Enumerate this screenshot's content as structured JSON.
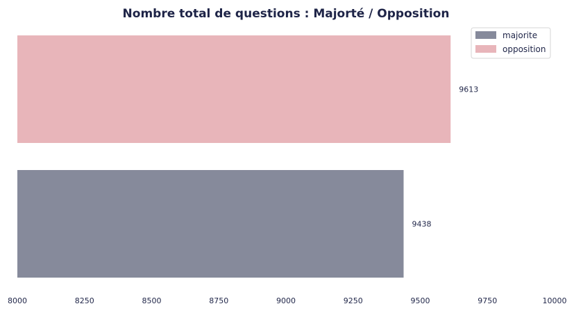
{
  "chart_data": {
    "type": "bar",
    "orientation": "horizontal",
    "title": "Nombre total de questions : Majorté / Opposition",
    "xlabel": "",
    "ylabel": "",
    "xlim": [
      8000,
      10000
    ],
    "xticks": [
      8000,
      8250,
      8500,
      8750,
      9000,
      9250,
      9500,
      9750,
      10000
    ],
    "grid": false,
    "legend_position": "top-right",
    "series": [
      {
        "name": "majorite",
        "value": 9438,
        "color": "#868a9b"
      },
      {
        "name": "opposition",
        "value": 9613,
        "color": "#e8b5ba"
      }
    ]
  }
}
